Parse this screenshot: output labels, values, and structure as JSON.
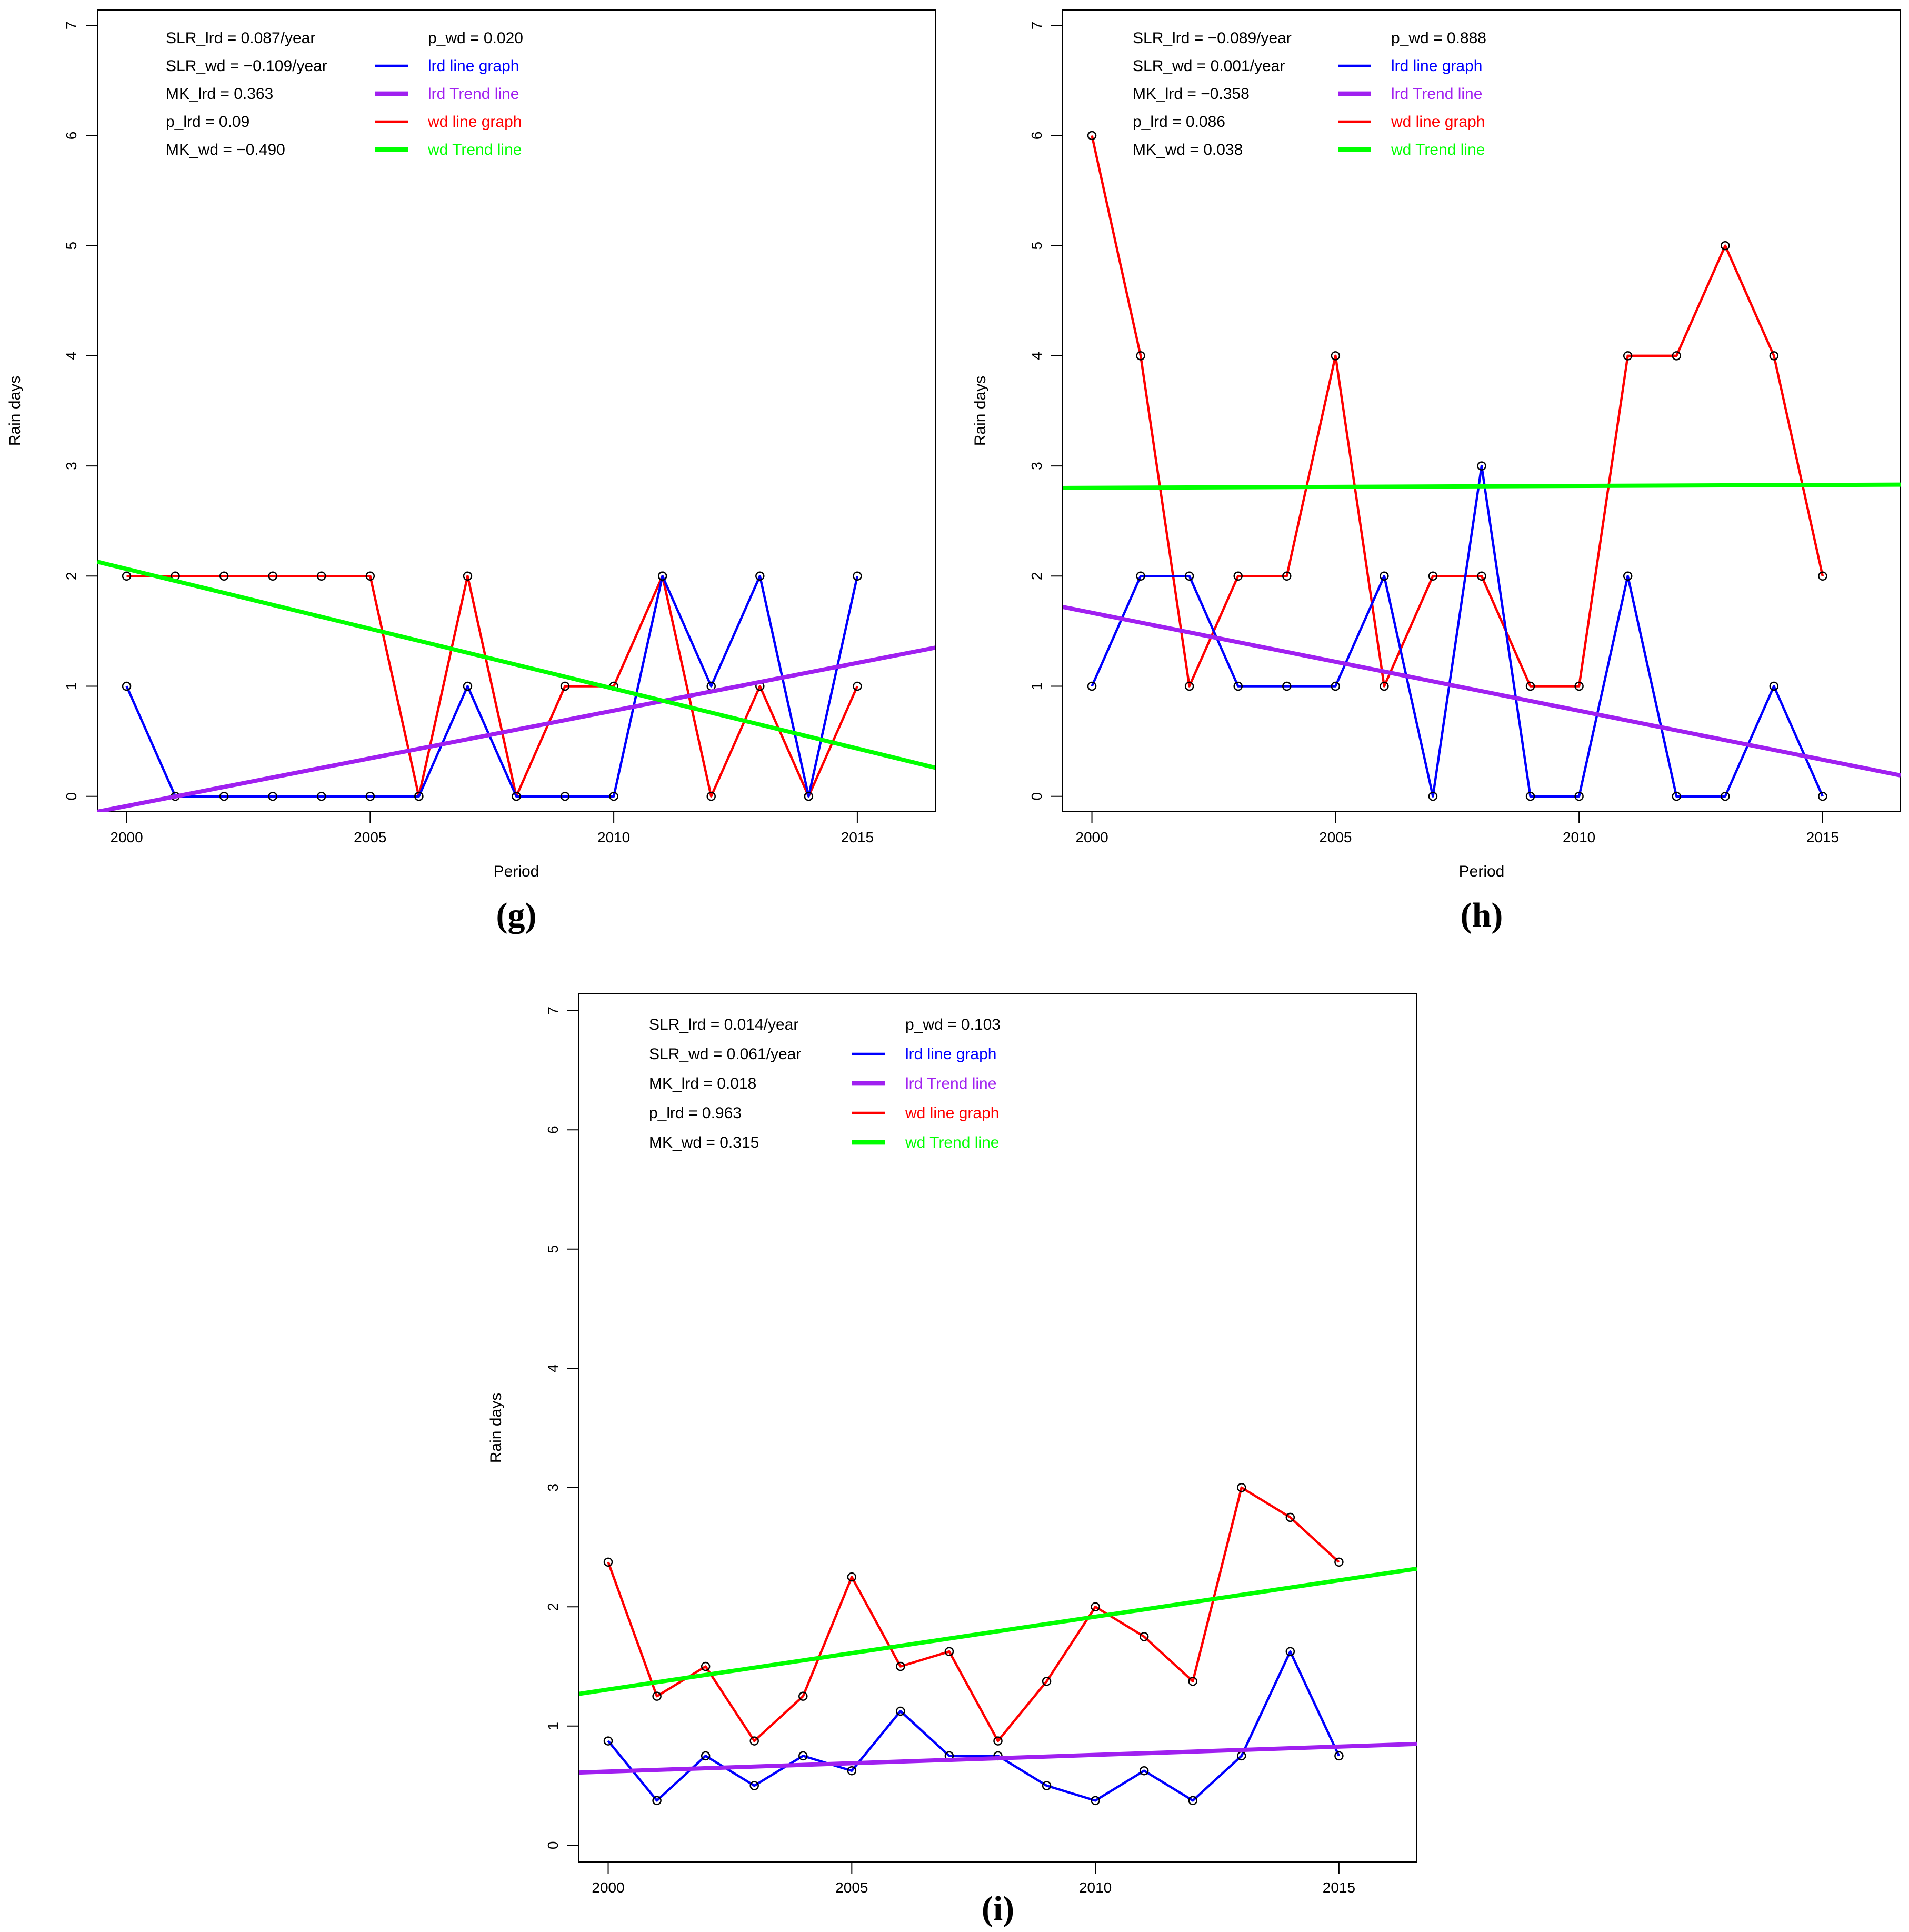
{
  "chart_data": [
    {
      "id": "g",
      "type": "line",
      "panel_label": "(g)",
      "xlabel": "Period",
      "ylabel": "Rain days",
      "xlim": [
        1999.4,
        2016.6
      ],
      "ylim": [
        -0.14,
        7.14
      ],
      "xticks": [
        2000,
        2005,
        2010,
        2015
      ],
      "yticks": [
        0,
        1,
        2,
        3,
        4,
        5,
        6,
        7
      ],
      "x": [
        2000,
        2001,
        2002,
        2003,
        2004,
        2005,
        2006,
        2007,
        2008,
        2009,
        2010,
        2011,
        2012,
        2013,
        2014,
        2015
      ],
      "series": [
        {
          "name": "lrd line graph",
          "kind": "line",
          "color": "#0000ff",
          "values": [
            1,
            0,
            0,
            0,
            0,
            0,
            0,
            1,
            0,
            0,
            0,
            2,
            1,
            2,
            0,
            2
          ]
        },
        {
          "name": "wd line graph",
          "kind": "line",
          "color": "#ff0000",
          "values": [
            2,
            2,
            2,
            2,
            2,
            2,
            0,
            2,
            0,
            1,
            1,
            2,
            0,
            1,
            0,
            1
          ]
        },
        {
          "name": "lrd Trend line",
          "kind": "trend",
          "color": "#a020f0",
          "start": [
            1999.4,
            -0.14
          ],
          "end": [
            2016.6,
            1.35
          ]
        },
        {
          "name": "wd Trend line",
          "kind": "trend",
          "color": "#00ff00",
          "start": [
            1999.4,
            2.13
          ],
          "end": [
            2016.6,
            0.26
          ]
        }
      ],
      "stats": [
        "SLR_lrd = 0.087/year",
        "SLR_wd = −0.109/year",
        "MK_lrd = 0.363",
        "p_lrd = 0.09",
        "MK_wd = −0.490"
      ],
      "legend": [
        {
          "label": "p_wd = 0.020",
          "color": "#000000",
          "line": false
        },
        {
          "label": "lrd line graph",
          "color": "#0000ff",
          "line": true,
          "lw": 2.2
        },
        {
          "label": "lrd Trend line",
          "color": "#a020f0",
          "line": true,
          "lw": 4.4
        },
        {
          "label": "wd line graph",
          "color": "#ff0000",
          "line": true,
          "lw": 2.2
        },
        {
          "label": "wd Trend line",
          "color": "#00ff00",
          "line": true,
          "lw": 4.4
        }
      ]
    },
    {
      "id": "h",
      "type": "line",
      "panel_label": "(h)",
      "xlabel": "Period",
      "ylabel": "Rain days",
      "xlim": [
        1999.4,
        2016.6
      ],
      "ylim": [
        -0.14,
        7.14
      ],
      "xticks": [
        2000,
        2005,
        2010,
        2015
      ],
      "yticks": [
        0,
        1,
        2,
        3,
        4,
        5,
        6,
        7
      ],
      "x": [
        2000,
        2001,
        2002,
        2003,
        2004,
        2005,
        2006,
        2007,
        2008,
        2009,
        2010,
        2011,
        2012,
        2013,
        2014,
        2015
      ],
      "series": [
        {
          "name": "lrd line graph",
          "kind": "line",
          "color": "#0000ff",
          "values": [
            1,
            2,
            2,
            1,
            1,
            1,
            2,
            0,
            3,
            0,
            0,
            2,
            0,
            0,
            1,
            0
          ]
        },
        {
          "name": "wd line graph",
          "kind": "line",
          "color": "#ff0000",
          "values": [
            6,
            4,
            1,
            2,
            2,
            4,
            1,
            2,
            2,
            1,
            1,
            4,
            4,
            5,
            4,
            2
          ]
        },
        {
          "name": "lrd Trend line",
          "kind": "trend",
          "color": "#a020f0",
          "start": [
            1999.4,
            1.72
          ],
          "end": [
            2016.6,
            0.19
          ]
        },
        {
          "name": "wd Trend line",
          "kind": "trend",
          "color": "#00ff00",
          "start": [
            1999.4,
            2.8
          ],
          "end": [
            2016.6,
            2.83
          ]
        }
      ],
      "stats": [
        "SLR_lrd = −0.089/year",
        "SLR_wd = 0.001/year",
        "MK_lrd = −0.358",
        "p_lrd = 0.086",
        "MK_wd = 0.038"
      ],
      "legend": [
        {
          "label": "p_wd = 0.888",
          "color": "#000000",
          "line": false
        },
        {
          "label": "lrd line graph",
          "color": "#0000ff",
          "line": true,
          "lw": 2.2
        },
        {
          "label": "lrd Trend line",
          "color": "#a020f0",
          "line": true,
          "lw": 4.4
        },
        {
          "label": "wd line graph",
          "color": "#ff0000",
          "line": true,
          "lw": 2.2
        },
        {
          "label": "wd Trend line",
          "color": "#00ff00",
          "line": true,
          "lw": 4.4
        }
      ]
    },
    {
      "id": "i",
      "type": "line",
      "panel_label": "(i)",
      "xlabel": "",
      "ylabel": "Rain days",
      "xlim": [
        1999.4,
        2016.6
      ],
      "ylim": [
        -0.14,
        7.14
      ],
      "xticks": [
        2000,
        2005,
        2010,
        2015
      ],
      "yticks": [
        0,
        1,
        2,
        3,
        4,
        5,
        6,
        7
      ],
      "x": [
        2000,
        2001,
        2002,
        2003,
        2004,
        2005,
        2006,
        2007,
        2008,
        2009,
        2010,
        2011,
        2012,
        2013,
        2014,
        2015
      ],
      "series": [
        {
          "name": "lrd line graph",
          "kind": "line",
          "color": "#0000ff",
          "values": [
            0.875,
            0.375,
            0.75,
            0.5,
            0.75,
            0.625,
            1.125,
            0.75,
            0.75,
            0.5,
            0.375,
            0.625,
            0.375,
            0.75,
            1.625,
            0.75
          ]
        },
        {
          "name": "wd line graph",
          "kind": "line",
          "color": "#ff0000",
          "values": [
            2.375,
            1.25,
            1.5,
            0.875,
            1.25,
            2.25,
            1.5,
            1.625,
            0.875,
            1.375,
            2.0,
            1.75,
            1.375,
            3.0,
            2.75,
            2.375
          ]
        },
        {
          "name": "lrd Trend line",
          "kind": "trend",
          "color": "#a020f0",
          "start": [
            1999.4,
            0.61
          ],
          "end": [
            2016.6,
            0.85
          ]
        },
        {
          "name": "wd Trend line",
          "kind": "trend",
          "color": "#00ff00",
          "start": [
            1999.4,
            1.27
          ],
          "end": [
            2016.6,
            2.32
          ]
        }
      ],
      "stats": [
        "SLR_lrd = 0.014/year",
        "SLR_wd = 0.061/year",
        "MK_lrd = 0.018",
        "p_lrd = 0.963",
        "MK_wd = 0.315"
      ],
      "legend": [
        {
          "label": "p_wd = 0.103",
          "color": "#000000",
          "line": false
        },
        {
          "label": "lrd line graph",
          "color": "#0000ff",
          "line": true,
          "lw": 2.2
        },
        {
          "label": "lrd Trend line",
          "color": "#a020f0",
          "line": true,
          "lw": 4.4
        },
        {
          "label": "wd line graph",
          "color": "#ff0000",
          "line": true,
          "lw": 2.2
        },
        {
          "label": "wd Trend line",
          "color": "#00ff00",
          "line": true,
          "lw": 4.4
        }
      ]
    }
  ]
}
